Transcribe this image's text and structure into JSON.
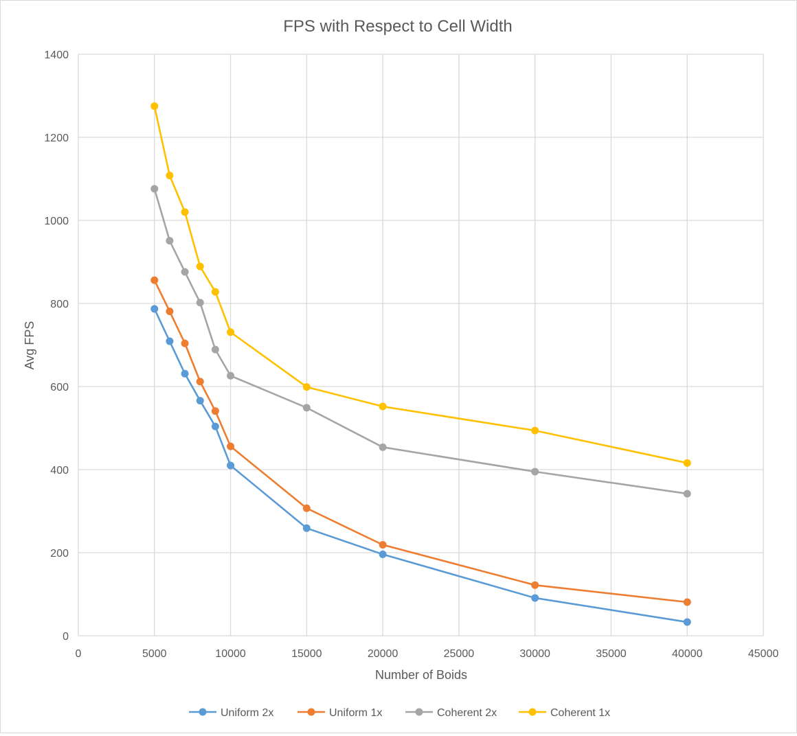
{
  "chart_data": {
    "type": "line",
    "title": "FPS with Respect to Cell Width",
    "xlabel": "Number of Boids",
    "ylabel": "Avg FPS",
    "xlim": [
      0,
      45000
    ],
    "ylim": [
      0,
      1400
    ],
    "xticks": [
      0,
      5000,
      10000,
      15000,
      20000,
      25000,
      30000,
      35000,
      40000,
      45000
    ],
    "yticks": [
      0,
      200,
      400,
      600,
      800,
      1000,
      1200,
      1400
    ],
    "grid": true,
    "legend_position": "bottom",
    "x": [
      5000,
      6000,
      7000,
      8000,
      9000,
      10000,
      15000,
      20000,
      30000,
      40000
    ],
    "series": [
      {
        "name": "Uniform 2x",
        "color": "#5B9BD5",
        "values": [
          787,
          709,
          631,
          566,
          504,
          410,
          259,
          196,
          91,
          33
        ]
      },
      {
        "name": "Uniform 1x",
        "color": "#ED7D31",
        "values": [
          856,
          781,
          704,
          612,
          541,
          456,
          307,
          219,
          122,
          81
        ]
      },
      {
        "name": "Coherent 2x",
        "color": "#A5A5A5",
        "values": [
          1076,
          951,
          876,
          802,
          689,
          626,
          549,
          454,
          395,
          342
        ]
      },
      {
        "name": "Coherent 1x",
        "color": "#FFC000",
        "values": [
          1275,
          1108,
          1020,
          889,
          828,
          731,
          599,
          552,
          494,
          416
        ]
      }
    ]
  }
}
